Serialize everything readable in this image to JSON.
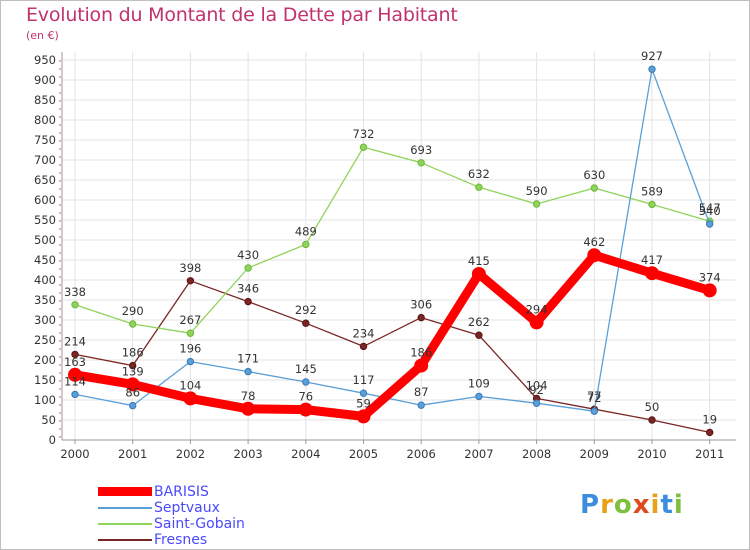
{
  "title": "Evolution du Montant de la Dette par Habitant",
  "subtitle": "(en €)",
  "logo_text": "Proxiti",
  "chart_data": {
    "type": "line",
    "categories": [
      "2000",
      "2001",
      "2002",
      "2003",
      "2004",
      "2005",
      "2006",
      "2007",
      "2008",
      "2009",
      "2010",
      "2011"
    ],
    "ylim": [
      0,
      950
    ],
    "yticks": [
      0,
      50,
      100,
      150,
      200,
      250,
      300,
      350,
      400,
      450,
      500,
      550,
      600,
      650,
      700,
      750,
      800,
      850,
      900,
      950
    ],
    "grid": true,
    "legend_position": "bottom-left",
    "series": [
      {
        "name": "BARISIS",
        "color": "#ff0000",
        "values": [
          163,
          139,
          104,
          78,
          76,
          59,
          186,
          415,
          294,
          462,
          417,
          374
        ]
      },
      {
        "name": "Septvaux",
        "color": "#5aa0d8",
        "values": [
          114,
          86,
          196,
          171,
          145,
          117,
          87,
          109,
          92,
          72,
          927,
          540
        ]
      },
      {
        "name": "Saint-Gobain",
        "color": "#8fd35a",
        "values": [
          338,
          290,
          267,
          430,
          489,
          732,
          693,
          632,
          590,
          630,
          589,
          547
        ]
      },
      {
        "name": "Fresnes",
        "color": "#7a2626",
        "values": [
          214,
          186,
          398,
          346,
          292,
          234,
          306,
          262,
          104,
          77,
          50,
          19
        ]
      }
    ]
  }
}
